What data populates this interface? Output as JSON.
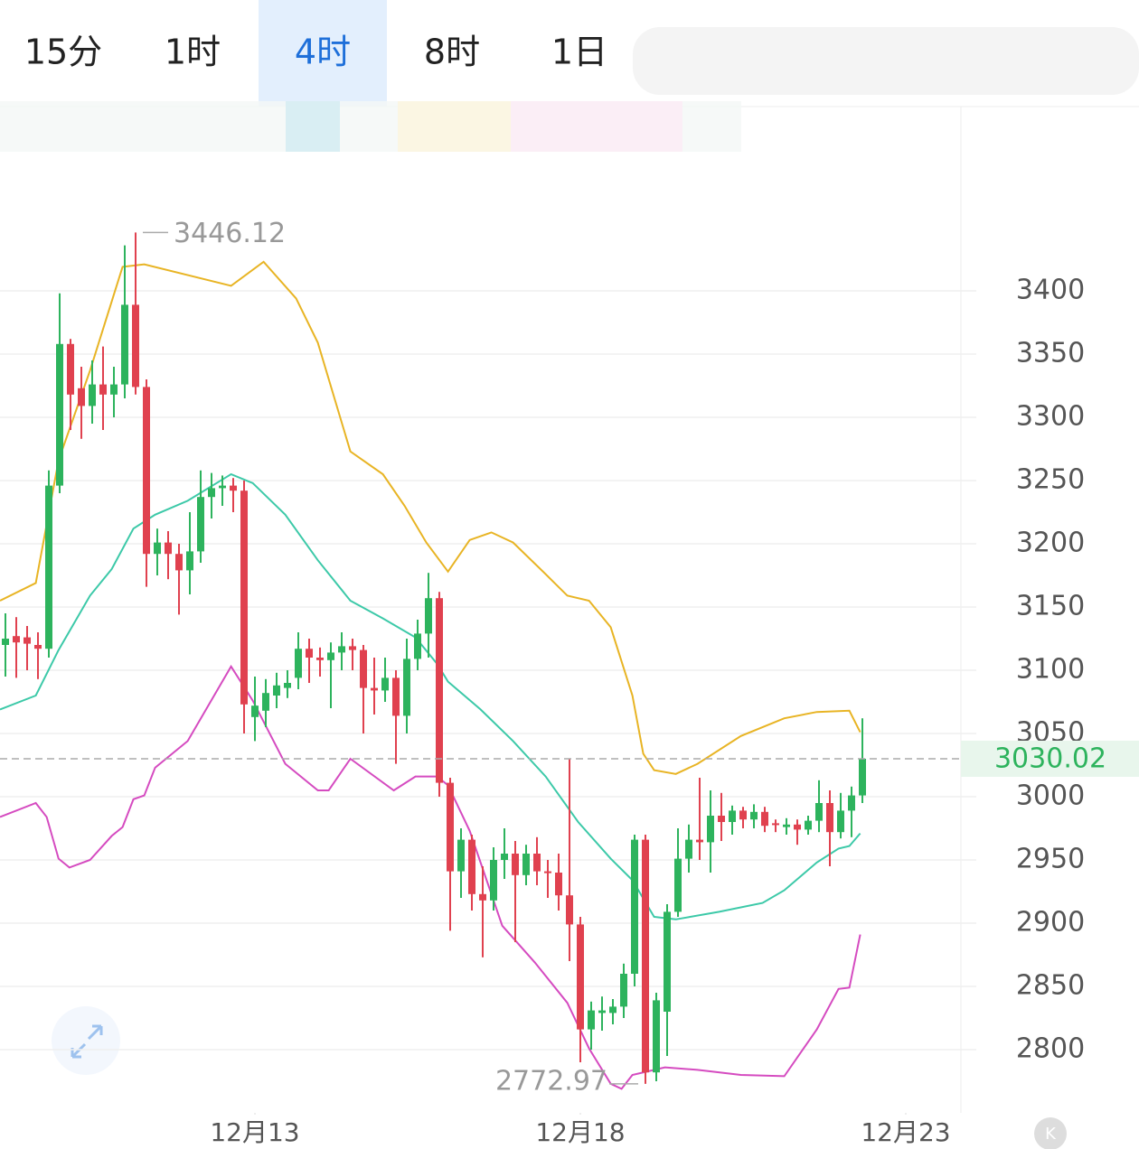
{
  "tabs": [
    "15分",
    "1时",
    "4时",
    "8时",
    "1日"
  ],
  "active_tab": 2,
  "chart_data": {
    "type": "candlestick",
    "up_color": "#2db35d",
    "down_color": "#e0414f",
    "xlim": [
      -0.5,
      89.5
    ],
    "xticks": [
      {
        "value": 23,
        "label": "12月13"
      },
      {
        "value": 53,
        "label": "12月18"
      },
      {
        "value": 83,
        "label": "12月23"
      }
    ],
    "ylim": [
      2750,
      3510
    ],
    "yticks": [
      2800,
      2850,
      2900,
      2950,
      3000,
      3050,
      3100,
      3150,
      3200,
      3250,
      3300,
      3350,
      3400
    ],
    "grid": true,
    "candles": {
      "open": [
        3120,
        3127,
        3126,
        3120,
        3117,
        3246,
        3358,
        3323,
        3309,
        3326,
        3318,
        3326,
        3389,
        3324,
        3192,
        3201,
        3192,
        3179,
        3194,
        3237,
        3244,
        3246,
        3242,
        3063,
        3068,
        3080,
        3086,
        3094,
        3117,
        3110,
        3108,
        3114,
        3119,
        3116,
        3086,
        3084,
        3094,
        3064,
        3109,
        3129,
        3157,
        3011,
        2941,
        2966,
        2923,
        2918,
        2950,
        2955,
        2938,
        2955,
        2941,
        2940,
        2922,
        2899,
        2816,
        2829,
        2829,
        2834,
        2860,
        2966,
        2782,
        2830,
        2909,
        2951,
        2966,
        2964,
        2985,
        2980,
        2989,
        2982,
        2988,
        2979,
        2976,
        2978,
        2974,
        2981,
        2995,
        2972,
        2989,
        3001
      ],
      "high": [
        3145,
        3142,
        3135,
        3130,
        3258,
        3398,
        3362,
        3340,
        3345,
        3356,
        3340,
        3436,
        3446.12,
        3330,
        3212,
        3210,
        3200,
        3225,
        3258,
        3256,
        3254,
        3252,
        3250,
        3095,
        3093,
        3098,
        3100,
        3130,
        3125,
        3118,
        3122,
        3130,
        3125,
        3120,
        3110,
        3110,
        3100,
        3125,
        3140,
        3177,
        3162,
        3015,
        2975,
        2970,
        2945,
        2960,
        2975,
        2965,
        2962,
        2968,
        2950,
        2955,
        3030,
        2905,
        2838,
        2842,
        2840,
        2868,
        2970,
        2970,
        2845,
        2915,
        2975,
        2978,
        3015,
        3005,
        3003,
        2993,
        2992,
        2994,
        2992,
        2982,
        2983,
        2982,
        2985,
        3013,
        3005,
        3003,
        3008,
        3062
      ],
      "low": [
        3095,
        3094,
        3100,
        3093,
        3110,
        3240,
        3290,
        3283,
        3295,
        3290,
        3300,
        3315,
        3318,
        3166,
        3175,
        3172,
        3144,
        3160,
        3185,
        3220,
        3230,
        3225,
        3050,
        3044,
        3055,
        3070,
        3078,
        3085,
        3090,
        3095,
        3070,
        3100,
        3100,
        3050,
        3065,
        3075,
        3026,
        3050,
        3100,
        3110,
        3000,
        2894,
        2920,
        2910,
        2873,
        2910,
        2935,
        2885,
        2930,
        2930,
        2920,
        2910,
        2870,
        2790,
        2800,
        2815,
        2820,
        2825,
        2850,
        2772.97,
        2775,
        2795,
        2905,
        2940,
        2950,
        2940,
        2965,
        2970,
        2975,
        2975,
        2972,
        2972,
        2970,
        2962,
        2970,
        2972,
        2945,
        2967,
        2968,
        2995
      ],
      "close": [
        3125,
        3122,
        3121,
        3117,
        3246,
        3358,
        3318,
        3309,
        3326,
        3318,
        3326,
        3389,
        3324,
        3192,
        3201,
        3192,
        3179,
        3194,
        3237,
        3244,
        3246,
        3242,
        3073,
        3072,
        3082,
        3088,
        3090,
        3117,
        3110,
        3108,
        3114,
        3119,
        3116,
        3086,
        3084,
        3094,
        3064,
        3109,
        3129,
        3157,
        3011,
        2941,
        2966,
        2923,
        2918,
        2950,
        2955,
        2938,
        2955,
        2941,
        2940,
        2922,
        2899,
        2816,
        2831,
        2831,
        2834,
        2860,
        2966,
        2782,
        2839,
        2909,
        2951,
        2966,
        2964,
        2985,
        2980,
        2989,
        2982,
        2988,
        2977,
        2978,
        2978,
        2974,
        2981,
        2995,
        2972,
        2989,
        3001,
        3030.02
      ]
    },
    "bands": [
      {
        "color": "#e8b424",
        "x": [
          -0.5,
          2.8,
          4.9,
          7.8,
          10.8,
          12.8,
          20.8,
          23.8,
          26.8,
          28.8,
          31.8,
          34.8,
          36.8,
          38.8,
          40.8,
          42.8,
          44.8,
          46.8,
          49.8,
          51.8,
          53.8,
          55.8,
          57.8,
          58.8,
          59.8,
          61.8,
          63.8,
          67.8,
          71.8,
          74.8,
          77.8,
          78.8
        ],
        "values": [
          3155,
          3169,
          3266,
          3337,
          3419,
          3421,
          3404,
          3423,
          3394,
          3359,
          3273,
          3255,
          3230,
          3201,
          3178,
          3203,
          3209,
          3201,
          3176,
          3159,
          3155,
          3134,
          3080,
          3034,
          3021,
          3018,
          3026,
          3048,
          3062,
          3067,
          3068,
          3051
        ]
      },
      {
        "color": "#3cc9a8",
        "x": [
          -0.5,
          2.8,
          4.9,
          7.8,
          9.8,
          11.8,
          13.8,
          16.8,
          20.8,
          22.8,
          25.8,
          28.8,
          31.8,
          34.8,
          37.8,
          39.8,
          40.8,
          43.8,
          46.8,
          49.8,
          52.8,
          55.8,
          57.8,
          59.8,
          61.8,
          65.8,
          69.8,
          71.8,
          74.8,
          76.8,
          77.8,
          78.8
        ],
        "values": [
          3069,
          3080,
          3116,
          3159,
          3180,
          3212,
          3223,
          3234,
          3255,
          3248,
          3223,
          3187,
          3155,
          3141,
          3126,
          3105,
          3091,
          3069,
          3044,
          3016,
          2980,
          2951,
          2934,
          2905,
          2903,
          2909,
          2916,
          2926,
          2948,
          2959,
          2961,
          2971
        ]
      },
      {
        "color": "#d54bc0",
        "x": [
          -0.5,
          2.8,
          3.8,
          4.9,
          5.9,
          7.8,
          9.8,
          10.8,
          11.8,
          12.8,
          13.8,
          16.8,
          20.8,
          22.8,
          25.8,
          28.8,
          29.8,
          31.8,
          35.8,
          37.8,
          39.8,
          40.8,
          42.8,
          45.8,
          48.8,
          51.8,
          53.8,
          55.8,
          56.8,
          57.8,
          60.8,
          63.8,
          67.8,
          71.8,
          74.8,
          76.8,
          77.8,
          78.8
        ],
        "values": [
          2984,
          2995,
          2984,
          2951,
          2944,
          2950,
          2969,
          2976,
          2998,
          3001,
          3023,
          3044,
          3103,
          3076,
          3026,
          3005,
          3005,
          3030,
          3005,
          3016,
          3016,
          3009,
          2973,
          2898,
          2869,
          2837,
          2801,
          2773,
          2769,
          2780,
          2786,
          2784,
          2780,
          2779,
          2816,
          2848,
          2849,
          2891
        ]
      }
    ]
  }
}
